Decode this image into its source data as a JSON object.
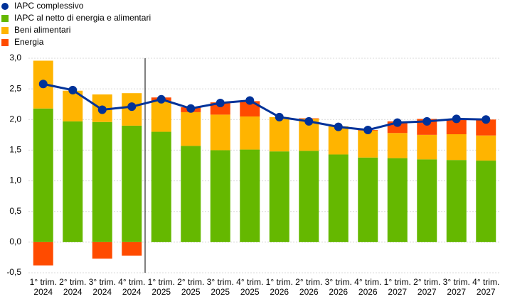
{
  "chart_data": {
    "type": "bar",
    "categories": [
      [
        "1° trim.",
        "2024"
      ],
      [
        "2° trim.",
        "2024"
      ],
      [
        "3° trim.",
        "2024"
      ],
      [
        "4° trim.",
        "2024"
      ],
      [
        "1° trim.",
        "2025"
      ],
      [
        "2° trim.",
        "2025"
      ],
      [
        "3° trim.",
        "2025"
      ],
      [
        "4° trim.",
        "2025"
      ],
      [
        "1° trim.",
        "2026"
      ],
      [
        "2° trim.",
        "2026"
      ],
      [
        "3° trim.",
        "2026"
      ],
      [
        "4° trim.",
        "2026"
      ],
      [
        "1° trim.",
        "2027"
      ],
      [
        "2° trim.",
        "2027"
      ],
      [
        "3° trim.",
        "2027"
      ],
      [
        "4° trim.",
        "2027"
      ]
    ],
    "series": [
      {
        "name": "IAPC complessivo",
        "color": "#003299",
        "kind": "line",
        "values": [
          2.58,
          2.48,
          2.16,
          2.21,
          2.33,
          2.18,
          2.27,
          2.31,
          2.04,
          1.97,
          1.88,
          1.83,
          1.95,
          1.97,
          2.01,
          2.0
        ]
      },
      {
        "name": "IAPC al netto di energia e alimentari",
        "color": "#65b800",
        "kind": "bar",
        "values": [
          2.18,
          1.97,
          1.96,
          1.9,
          1.8,
          1.57,
          1.5,
          1.51,
          1.48,
          1.49,
          1.43,
          1.38,
          1.37,
          1.35,
          1.34,
          1.33
        ]
      },
      {
        "name": "Beni alimentari",
        "color": "#ffb400",
        "kind": "bar",
        "values": [
          0.78,
          0.5,
          0.45,
          0.53,
          0.5,
          0.55,
          0.58,
          0.54,
          0.56,
          0.52,
          0.46,
          0.44,
          0.41,
          0.4,
          0.42,
          0.41
        ]
      },
      {
        "name": "Energia",
        "color": "#ff4b00",
        "kind": "bar",
        "values": [
          -0.38,
          0.0,
          -0.27,
          -0.22,
          0.06,
          0.08,
          0.2,
          0.25,
          0.0,
          0.01,
          0.0,
          0.01,
          0.19,
          0.26,
          0.25,
          0.26
        ]
      }
    ],
    "ylim": [
      -0.5,
      3.0
    ],
    "yticks": [
      {
        "value": -0.5,
        "label": "-0,5"
      },
      {
        "value": 0,
        "label": "0,0"
      },
      {
        "value": 0.5,
        "label": "0,5"
      },
      {
        "value": 1,
        "label": "1,0"
      },
      {
        "value": 1.5,
        "label": "1,5"
      },
      {
        "value": 2,
        "label": "2,0"
      },
      {
        "value": 2.5,
        "label": "2,5"
      },
      {
        "value": 3,
        "label": "3,0"
      }
    ],
    "grid": true
  }
}
